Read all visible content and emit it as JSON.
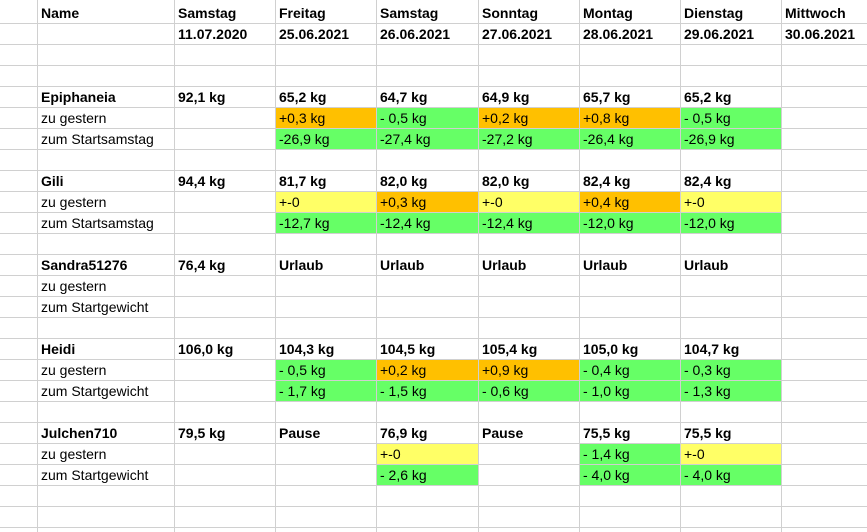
{
  "colors": {
    "green": "#66ff66",
    "orange": "#ffc000",
    "yellow": "#ffff66",
    "grid": "#d0d0d0"
  },
  "header": {
    "name": "Name",
    "days": [
      {
        "day": "Samstag",
        "date": "11.07.2020"
      },
      {
        "day": "Freitag",
        "date": "25.06.2021"
      },
      {
        "day": "Samstag",
        "date": "26.06.2021"
      },
      {
        "day": "Sonntag",
        "date": "27.06.2021"
      },
      {
        "day": "Montag",
        "date": "28.06.2021"
      },
      {
        "day": "Dienstag",
        "date": "29.06.2021"
      },
      {
        "day": "Mittwoch",
        "date": "30.06.2021"
      }
    ]
  },
  "groups": [
    {
      "name": "Epiphaneia",
      "weights": [
        "92,1 kg",
        "65,2 kg",
        "64,7 kg",
        "64,9 kg",
        "65,7 kg",
        "65,2 kg",
        ""
      ],
      "row2_label": "zu gestern",
      "row2": [
        {
          "v": "",
          "c": ""
        },
        {
          "v": "+0,3 kg",
          "c": "orange"
        },
        {
          "v": "- 0,5 kg",
          "c": "green"
        },
        {
          "v": "+0,2 kg",
          "c": "orange"
        },
        {
          "v": "+0,8 kg",
          "c": "orange"
        },
        {
          "v": "- 0,5 kg",
          "c": "green"
        },
        {
          "v": "",
          "c": ""
        }
      ],
      "row3_label": "zum Startsamstag",
      "row3": [
        {
          "v": "",
          "c": ""
        },
        {
          "v": "-26,9 kg",
          "c": "green"
        },
        {
          "v": "-27,4 kg",
          "c": "green"
        },
        {
          "v": "-27,2 kg",
          "c": "green"
        },
        {
          "v": "-26,4 kg",
          "c": "green"
        },
        {
          "v": "-26,9 kg",
          "c": "green"
        },
        {
          "v": "",
          "c": ""
        }
      ]
    },
    {
      "name": "Gili",
      "weights": [
        "94,4 kg",
        "81,7 kg",
        "82,0 kg",
        "82,0 kg",
        "82,4 kg",
        "82,4 kg",
        ""
      ],
      "row2_label": "zu gestern",
      "row2": [
        {
          "v": "",
          "c": ""
        },
        {
          "v": "+-0",
          "c": "yellow"
        },
        {
          "v": "+0,3 kg",
          "c": "orange"
        },
        {
          "v": "+-0",
          "c": "yellow"
        },
        {
          "v": "+0,4 kg",
          "c": "orange"
        },
        {
          "v": "+-0",
          "c": "yellow"
        },
        {
          "v": "",
          "c": ""
        }
      ],
      "row3_label": "zum Startsamstag",
      "row3": [
        {
          "v": "",
          "c": ""
        },
        {
          "v": "-12,7 kg",
          "c": "green"
        },
        {
          "v": "-12,4 kg",
          "c": "green"
        },
        {
          "v": "-12,4 kg",
          "c": "green"
        },
        {
          "v": "-12,0 kg",
          "c": "green"
        },
        {
          "v": "-12,0 kg",
          "c": "green"
        },
        {
          "v": "",
          "c": ""
        }
      ]
    },
    {
      "name": "Sandra51276",
      "weights": [
        "76,4 kg",
        "Urlaub",
        "Urlaub",
        "Urlaub",
        "Urlaub",
        "Urlaub",
        ""
      ],
      "row2_label": "zu gestern",
      "row2": [
        {
          "v": "",
          "c": ""
        },
        {
          "v": "",
          "c": ""
        },
        {
          "v": "",
          "c": ""
        },
        {
          "v": "",
          "c": ""
        },
        {
          "v": "",
          "c": ""
        },
        {
          "v": "",
          "c": ""
        },
        {
          "v": "",
          "c": ""
        }
      ],
      "row3_label": "zum Startgewicht",
      "row3": [
        {
          "v": "",
          "c": ""
        },
        {
          "v": "",
          "c": ""
        },
        {
          "v": "",
          "c": ""
        },
        {
          "v": "",
          "c": ""
        },
        {
          "v": "",
          "c": ""
        },
        {
          "v": "",
          "c": ""
        },
        {
          "v": "",
          "c": ""
        }
      ]
    },
    {
      "name": "Heidi",
      "weights": [
        "106,0 kg",
        "104,3 kg",
        "104,5 kg",
        "105,4 kg",
        "105,0 kg",
        "104,7 kg",
        ""
      ],
      "row2_label": "zu gestern",
      "row2": [
        {
          "v": "",
          "c": ""
        },
        {
          "v": "- 0,5 kg",
          "c": "green"
        },
        {
          "v": "+0,2 kg",
          "c": "orange"
        },
        {
          "v": "+0,9 kg",
          "c": "orange"
        },
        {
          "v": "- 0,4 kg",
          "c": "green"
        },
        {
          "v": "- 0,3 kg",
          "c": "green"
        },
        {
          "v": "",
          "c": ""
        }
      ],
      "row3_label": "zum Startgewicht",
      "row3": [
        {
          "v": "",
          "c": ""
        },
        {
          "v": "- 1,7 kg",
          "c": "green"
        },
        {
          "v": "- 1,5 kg",
          "c": "green"
        },
        {
          "v": "- 0,6 kg",
          "c": "green"
        },
        {
          "v": "- 1,0 kg",
          "c": "green"
        },
        {
          "v": "- 1,3 kg",
          "c": "green"
        },
        {
          "v": "",
          "c": ""
        }
      ]
    },
    {
      "name": "Julchen710",
      "weights": [
        "79,5 kg",
        "Pause",
        "76,9 kg",
        "Pause",
        "75,5 kg",
        "75,5 kg",
        ""
      ],
      "row2_label": "zu gestern",
      "row2": [
        {
          "v": "",
          "c": ""
        },
        {
          "v": "",
          "c": ""
        },
        {
          "v": "+-0",
          "c": "yellow"
        },
        {
          "v": "",
          "c": ""
        },
        {
          "v": "- 1,4 kg",
          "c": "green"
        },
        {
          "v": "+-0",
          "c": "yellow"
        },
        {
          "v": "",
          "c": ""
        }
      ],
      "row3_label": "zum Startgewicht",
      "row3": [
        {
          "v": "",
          "c": ""
        },
        {
          "v": "",
          "c": ""
        },
        {
          "v": "- 2,6 kg",
          "c": "green"
        },
        {
          "v": "",
          "c": ""
        },
        {
          "v": "- 4,0 kg",
          "c": "green"
        },
        {
          "v": "- 4,0 kg",
          "c": "green"
        },
        {
          "v": "",
          "c": ""
        }
      ]
    }
  ]
}
